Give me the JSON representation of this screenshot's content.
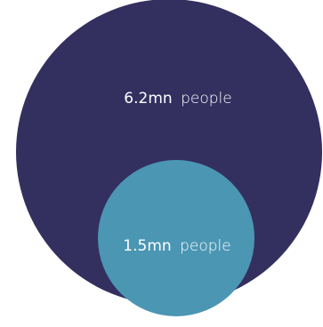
{
  "chart_data": {
    "type": "bubble",
    "title": "",
    "series": [
      {
        "value": 6.2,
        "value_label": "6.2mn",
        "unit_label": "people",
        "color": "#33305f"
      },
      {
        "value": 1.5,
        "value_label": "1.5mn",
        "unit_label": "people",
        "color": "#4b96b3"
      }
    ]
  }
}
